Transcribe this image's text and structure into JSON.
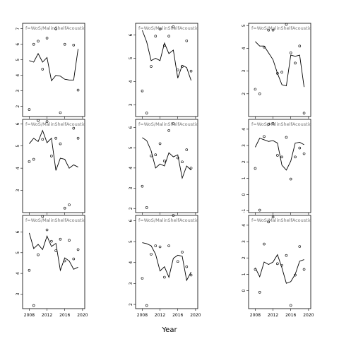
{
  "figure": {
    "xlabel": "Year",
    "panel_title": "f=WoS/MalinShelfAcoustics",
    "x_ticks": [
      2008,
      2012,
      2016,
      2020
    ]
  },
  "chart_data": [
    {
      "type": "line",
      "title": "f=WoS/MalinShelfAcoustics",
      "xlim": [
        2006.5,
        2020.5
      ],
      "ylim": [
        1.35,
        7.35
      ],
      "yticks": [
        2,
        3,
        4,
        5,
        6,
        7
      ],
      "line": {
        "x": [
          2008,
          2009,
          2010,
          2011,
          2012,
          2013,
          2014,
          2015,
          2016,
          2017,
          2018,
          2019
        ],
        "y": [
          4.95,
          4.85,
          5.4,
          4.85,
          5.15,
          3.65,
          4.0,
          3.95,
          3.75,
          3.7,
          3.7,
          5.7
        ]
      },
      "points": {
        "x": [
          2008,
          2009,
          2010,
          2011,
          2012,
          2014,
          2015,
          2016,
          2018,
          2019
        ],
        "y": [
          1.8,
          6.0,
          6.2,
          4.4,
          6.4,
          7.0,
          1.6,
          6.0,
          5.95,
          3.05
        ]
      }
    },
    {
      "type": "line",
      "title": "f=WoS/MalinShelfAcoustics",
      "xlim": [
        2006.5,
        2020.5
      ],
      "ylim": [
        2.5,
        6.5
      ],
      "yticks": [
        3,
        4,
        5,
        6
      ],
      "line": {
        "x": [
          2008,
          2009,
          2010,
          2011,
          2012,
          2013,
          2014,
          2015,
          2016,
          2017,
          2018,
          2019
        ],
        "y": [
          6.2,
          5.7,
          4.9,
          5.0,
          4.9,
          5.65,
          5.2,
          5.35,
          4.15,
          4.7,
          4.6,
          4.05
        ]
      },
      "points": {
        "x": [
          2008,
          2009,
          2010,
          2011,
          2012,
          2013,
          2014,
          2015,
          2016,
          2017,
          2018,
          2019
        ],
        "y": [
          3.6,
          2.65,
          4.65,
          5.95,
          6.25,
          5.55,
          5.95,
          6.35,
          4.5,
          4.65,
          5.75,
          4.45
        ]
      }
    },
    {
      "type": "line",
      "title": "f=WoS/MalinShelfAcoustics",
      "xlim": [
        2006.5,
        2020.5
      ],
      "ylim": [
        1.0,
        5.1
      ],
      "yticks": [
        2,
        3,
        4,
        5
      ],
      "line": {
        "x": [
          2008,
          2009,
          2010,
          2011,
          2012,
          2013,
          2014,
          2015,
          2016,
          2017,
          2018,
          2019
        ],
        "y": [
          4.3,
          4.1,
          4.1,
          3.8,
          3.5,
          2.9,
          2.4,
          2.35,
          3.7,
          3.65,
          3.7,
          2.3
        ]
      },
      "points": {
        "x": [
          2008,
          2009,
          2010,
          2011,
          2012,
          2013,
          2014,
          2015,
          2016,
          2017,
          2018,
          2019
        ],
        "y": [
          2.2,
          2.0,
          4.05,
          4.8,
          4.8,
          2.9,
          2.95,
          5.05,
          3.8,
          3.35,
          4.1,
          1.15
        ]
      }
    },
    {
      "type": "line",
      "title": "f=WoS/MalinShelfAcoustics",
      "xlim": [
        2006.5,
        2020.5
      ],
      "ylim": [
        2.0,
        6.2
      ],
      "yticks": [
        3,
        4,
        5,
        6
      ],
      "line": {
        "x": [
          2008,
          2009,
          2010,
          2011,
          2012,
          2013,
          2014,
          2015,
          2016,
          2017,
          2018,
          2019
        ],
        "y": [
          5.1,
          5.35,
          5.2,
          5.7,
          5.15,
          5.35,
          3.9,
          4.45,
          4.4,
          4.0,
          4.15,
          4.05
        ]
      },
      "points": {
        "x": [
          2008,
          2009,
          2010,
          2011,
          2012,
          2013,
          2014,
          2015,
          2016,
          2017,
          2018,
          2019
        ],
        "y": [
          4.3,
          4.4,
          6.15,
          5.3,
          6.1,
          4.55,
          5.35,
          5.1,
          2.2,
          2.35,
          5.8,
          5.35
        ]
      }
    },
    {
      "type": "line",
      "title": "f=WoS/MalinShelfAcoustics",
      "xlim": [
        2006.5,
        2020.5
      ],
      "ylim": [
        1.8,
        6.4
      ],
      "yticks": [
        2,
        3,
        4,
        5,
        6
      ],
      "line": {
        "x": [
          2008,
          2009,
          2010,
          2011,
          2012,
          2013,
          2014,
          2015,
          2016,
          2017,
          2018,
          2019
        ],
        "y": [
          5.5,
          5.35,
          4.85,
          4.0,
          4.2,
          4.1,
          4.75,
          4.55,
          4.65,
          3.5,
          4.1,
          3.9
        ]
      },
      "points": {
        "x": [
          2008,
          2009,
          2010,
          2011,
          2012,
          2013,
          2014,
          2015,
          2016,
          2017,
          2018,
          2019
        ],
        "y": [
          3.1,
          2.05,
          4.6,
          4.65,
          5.2,
          4.35,
          5.85,
          6.2,
          4.5,
          4.3,
          4.9,
          4.0
        ]
      }
    },
    {
      "type": "line",
      "title": "f=WoS/MalinShelfAcoustics",
      "xlim": [
        2006.5,
        2020.5
      ],
      "ylim": [
        -1.1,
        4.6
      ],
      "yticks": [
        -1,
        0,
        1,
        2,
        3,
        4
      ],
      "line": {
        "x": [
          2008,
          2009,
          2010,
          2011,
          2012,
          2013,
          2014,
          2015,
          2016,
          2017,
          2018,
          2019
        ],
        "y": [
          2.9,
          3.45,
          3.35,
          3.25,
          3.3,
          3.15,
          1.8,
          1.5,
          2.05,
          3.15,
          3.2,
          3.05
        ]
      },
      "points": {
        "x": [
          2008,
          2009,
          2010,
          2011,
          2012,
          2013,
          2014,
          2015,
          2016,
          2017,
          2018,
          2019
        ],
        "y": [
          1.6,
          -0.95,
          3.55,
          4.3,
          4.35,
          2.4,
          2.3,
          3.5,
          0.95,
          2.3,
          2.85,
          2.5
        ]
      }
    },
    {
      "type": "line",
      "title": "f=WoS/MalinShelfAcoustics",
      "xlim": [
        2006.5,
        2020.5
      ],
      "ylim": [
        2.3,
        6.8
      ],
      "yticks": [
        3,
        4,
        5,
        6
      ],
      "line": {
        "x": [
          2008,
          2009,
          2010,
          2011,
          2012,
          2013,
          2014,
          2015,
          2016,
          2017,
          2018,
          2019
        ],
        "y": [
          5.95,
          5.2,
          5.4,
          5.15,
          5.8,
          5.3,
          5.45,
          4.15,
          4.75,
          4.6,
          4.2,
          4.3
        ]
      },
      "points": {
        "x": [
          2008,
          2009,
          2010,
          2011,
          2012,
          2013,
          2014,
          2015,
          2016,
          2017,
          2018,
          2019
        ],
        "y": [
          4.15,
          2.45,
          4.9,
          6.75,
          6.1,
          5.55,
          5.1,
          5.65,
          4.6,
          5.6,
          4.7,
          5.15
        ]
      }
    },
    {
      "type": "line",
      "title": "f=WoS/MalinShelfAcoustics",
      "xlim": [
        2006.5,
        2020.5
      ],
      "ylim": [
        1.8,
        6.25
      ],
      "yticks": [
        2,
        3,
        4,
        5,
        6
      ],
      "line": {
        "x": [
          2008,
          2009,
          2010,
          2011,
          2012,
          2013,
          2014,
          2015,
          2016,
          2017,
          2018,
          2019
        ],
        "y": [
          4.95,
          4.9,
          4.8,
          4.4,
          3.6,
          3.8,
          3.3,
          4.2,
          4.35,
          4.3,
          3.15,
          3.55
        ]
      },
      "points": {
        "x": [
          2008,
          2009,
          2010,
          2011,
          2012,
          2013,
          2014,
          2015,
          2016,
          2017,
          2018,
          2019
        ],
        "y": [
          3.25,
          1.95,
          4.4,
          4.8,
          4.75,
          3.3,
          4.8,
          6.25,
          4.05,
          4.5,
          3.8,
          3.4
        ]
      }
    },
    {
      "type": "line",
      "title": "f=WoS/MalinShelfAcoustics",
      "xlim": [
        2006.5,
        2020.5
      ],
      "ylim": [
        -1.1,
        4.6
      ],
      "yticks": [
        0,
        1,
        2,
        3,
        4
      ],
      "line": {
        "x": [
          2008,
          2009,
          2010,
          2011,
          2012,
          2013,
          2014,
          2015,
          2016,
          2017,
          2018,
          2019
        ],
        "y": [
          1.4,
          0.85,
          1.75,
          1.6,
          1.75,
          2.2,
          1.4,
          0.45,
          0.55,
          1.0,
          1.8,
          1.9
        ]
      },
      "points": {
        "x": [
          2008,
          2009,
          2010,
          2011,
          2012,
          2013,
          2014,
          2015,
          2016,
          2017,
          2018,
          2019
        ],
        "y": [
          1.3,
          -0.1,
          2.85,
          4.2,
          4.5,
          1.65,
          1.55,
          2.15,
          -0.9,
          0.95,
          2.7,
          1.3
        ]
      }
    }
  ]
}
